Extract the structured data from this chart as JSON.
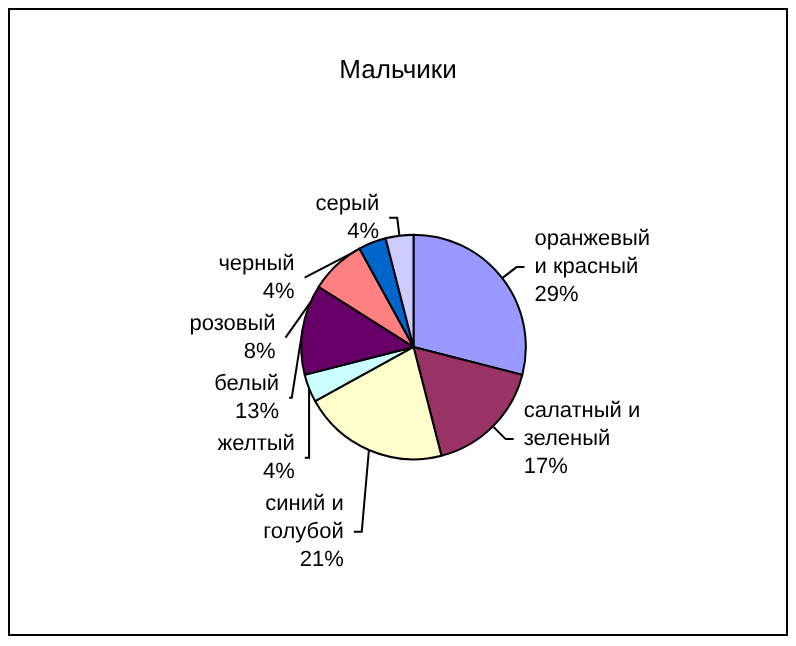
{
  "chart_data": {
    "type": "pie",
    "title": "Мальчики",
    "categories": [
      "оранжевый\nи красный",
      "салатный и\nзеленый",
      "синий и\nголубой",
      "желтый",
      "белый",
      "розовый",
      "черный",
      "серый"
    ],
    "values": [
      29,
      17,
      21,
      4,
      13,
      8,
      4,
      4
    ],
    "colors": [
      "#9999ff",
      "#993366",
      "#ffffcc",
      "#ccffff",
      "#660066",
      "#ff8080",
      "#0066cc",
      "#ccccff"
    ],
    "value_labels": [
      "29%",
      "17%",
      "21%",
      "4%",
      "13%",
      "8%",
      "4%",
      "4%"
    ],
    "legend": false
  }
}
